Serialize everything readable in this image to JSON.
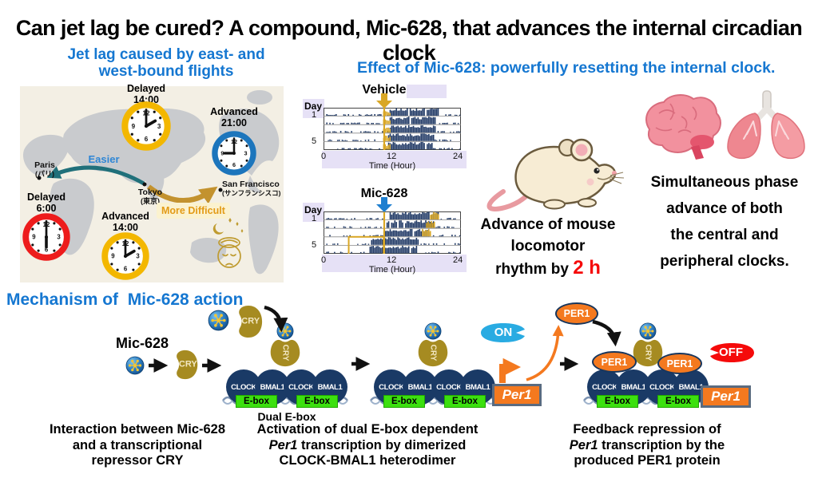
{
  "title": "Can jet lag be cured? A compound, Mic-628, that advances the internal circadian clock",
  "colors": {
    "heading_blue": "#1577D1",
    "map_gold_arrow": "#C3922E",
    "map_teal_arrow": "#20707A",
    "activity_navy": "#1F3864",
    "injection_gold": "#D9A726",
    "ebox_green": "#3CE00F",
    "protein_navy": "#1A3A66",
    "cry_gold": "#A68B21",
    "orange": "#F4791F",
    "on_cyan": "#29ABE2",
    "off_red": "#F50A0A"
  },
  "jetlag": {
    "heading_lines": [
      "Jet lag caused by east- and",
      "west-bound flights"
    ],
    "easier": "Easier",
    "more_difficult": "More Difficult",
    "clock_numerals": [
      "12",
      "3",
      "6",
      "9"
    ],
    "clocks": [
      {
        "status": "Delayed",
        "time": "14:00",
        "ring_color": "#F3B700"
      },
      {
        "status": "Advanced",
        "time": "21:00",
        "ring_color": "#1C75BC"
      },
      {
        "status": "Delayed",
        "time": "6:00",
        "ring_color": "#ED1C1C"
      },
      {
        "status": "Advanced",
        "time": "14:00",
        "ring_color": "#F3B700"
      }
    ],
    "cities": [
      {
        "name": "Paris",
        "native": "(パリ)"
      },
      {
        "name": "Tokyo",
        "native": "(東京)"
      },
      {
        "name": "San Francisco",
        "native": "(サンフランシスコ)"
      }
    ]
  },
  "effect": {
    "heading": "Effect of Mic-628: powerfully resetting the internal clock.",
    "mouse_caption": {
      "line1": "Advance of mouse",
      "line2": "locomotor",
      "line3_prefix": "rhythm by ",
      "highlight": "2 h"
    },
    "organs_caption_lines": [
      "Simultaneous phase",
      "advance of both",
      "the central and",
      "peripheral clocks."
    ]
  },
  "chart_data": [
    {
      "type": "area",
      "subtype": "double-plotted-actogram",
      "title": "Vehicle",
      "ylabel": "Day",
      "xlabel": "Time (Hour)",
      "x_ticks": [
        "0",
        "12",
        "24"
      ],
      "y_ticks": [
        "1",
        "5"
      ],
      "x_range": [
        0,
        24
      ],
      "injection_hour": 10.6,
      "arrow_color": "#D9A726",
      "gold_injection_ticks": true,
      "activity": [
        {
          "day": 1,
          "onset": 11.3,
          "offset": 20.0
        },
        {
          "day": 2,
          "onset": 11.3,
          "offset": 19.6
        },
        {
          "day": 3,
          "onset": 11.3,
          "offset": 19.6
        },
        {
          "day": 4,
          "onset": 11.2,
          "offset": 19.2
        },
        {
          "day": 5,
          "onset": 11.2,
          "offset": 19.0
        }
      ]
    },
    {
      "type": "area",
      "subtype": "double-plotted-actogram",
      "title": "Mic-628",
      "ylabel": "Day",
      "xlabel": "Time (Hour)",
      "x_ticks": [
        "0",
        "12",
        "24"
      ],
      "y_ticks": [
        "1",
        "5"
      ],
      "x_range": [
        0,
        24
      ],
      "injection_hour": 10.6,
      "arrow_color": "#1E7FD0",
      "gold_injection_ticks": false,
      "activity": [
        {
          "day": 1,
          "onset": 11.3,
          "offset": 20.0
        },
        {
          "day": 2,
          "onset": 10.8,
          "offset": 19.2
        },
        {
          "day": 3,
          "onset": 10.2,
          "offset": 18.5
        },
        {
          "day": 4,
          "onset": 8.2,
          "offset": 16.6
        },
        {
          "day": 5,
          "onset": 7.8,
          "offset": 16.2
        }
      ],
      "advance_highlight_hours": [
        [
          18.6,
          20.0
        ],
        [
          17.9,
          19.3
        ],
        [
          17.2,
          18.6
        ],
        null,
        null
      ],
      "highlight_box": {
        "hours": [
          4.4,
          10.5
        ],
        "rows": [
          4,
          5
        ]
      }
    }
  ],
  "mechanism": {
    "heading": "Mechanism of  Mic-628 action",
    "mic_label": "Mic-628",
    "cry": "CRY",
    "clock": "CLOCK",
    "bmal1": "BMAL1",
    "ebox": "E-box",
    "dual_ebox": "Dual E-box",
    "per1_gene": "Per1",
    "per1_protein": "PER1",
    "on": "ON",
    "off": "OFF",
    "captions": [
      {
        "lines": [
          {
            "text": "Interaction between Mic-628"
          },
          {
            "text": "and a transcriptional"
          },
          {
            "text": "repressor CRY"
          }
        ]
      },
      {
        "lines": [
          {
            "text": "Activation of dual E-box dependent"
          },
          {
            "italic": "Per1",
            "text": " transcription by dimerized"
          },
          {
            "text": "CLOCK-BMAL1 heterodimer"
          }
        ]
      },
      {
        "lines": [
          {
            "text": "Feedback repression of"
          },
          {
            "italic": "Per1",
            "text": " transcription by the"
          },
          {
            "text": "produced PER1 protein"
          }
        ]
      }
    ]
  }
}
